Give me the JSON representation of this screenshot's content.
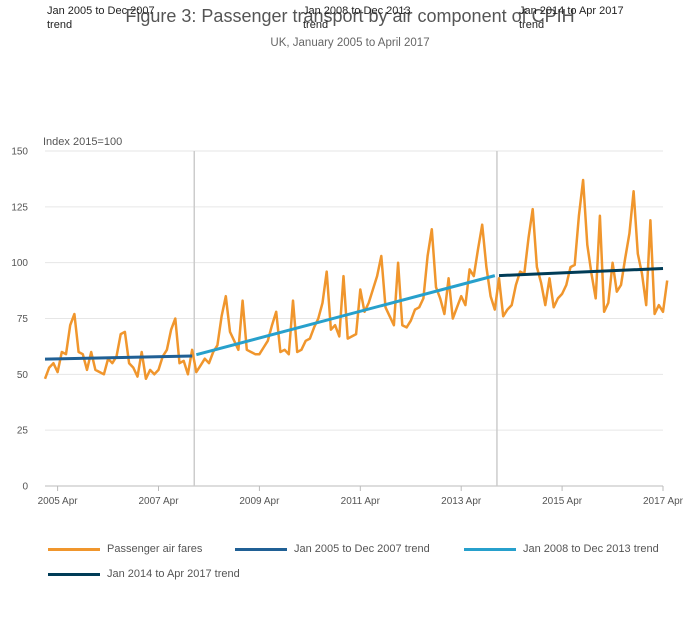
{
  "chart_data": {
    "type": "line",
    "title": "Figure 3: Passenger transport by air component of CPIH",
    "subtitle": "UK, January 2005 to April 2017",
    "ylabel": "Index 2015=100",
    "ylim": [
      0,
      150
    ],
    "yticks": [
      0,
      25,
      50,
      75,
      100,
      125,
      150
    ],
    "xlim": [
      "2005-01",
      "2017-04"
    ],
    "xticks": [
      {
        "x": "2005-04",
        "label": "2005 Apr"
      },
      {
        "x": "2007-04",
        "label": "2007 Apr"
      },
      {
        "x": "2009-04",
        "label": "2009 Apr"
      },
      {
        "x": "2011-04",
        "label": "2011 Apr"
      },
      {
        "x": "2013-04",
        "label": "2013 Apr"
      },
      {
        "x": "2015-04",
        "label": "2015 Apr"
      },
      {
        "x": "2017-04",
        "label": "2017 Apr"
      }
    ],
    "grid": true,
    "legend": "bottom",
    "period_labels": [
      {
        "text": "Jan 2005 to Dec 2007 trend",
        "x": "2005-01"
      },
      {
        "text": "Jan 2008 to Dec 2013 trend",
        "x": "2011-01"
      },
      {
        "text": "Jan 2014 to Apr 2017 trend",
        "x": "2015-05"
      }
    ],
    "dividers": [
      "2007-12",
      "2013-12"
    ],
    "start": "2005-01",
    "series": [
      {
        "name": "Passenger air fares",
        "color": "#f0962d",
        "values": [
          48,
          53,
          55,
          51,
          60,
          59,
          72,
          77,
          60,
          59,
          52,
          60,
          52,
          51,
          50,
          57,
          55,
          58,
          68,
          69,
          55,
          53,
          49,
          60,
          48,
          52,
          50,
          52,
          58,
          61,
          70,
          75,
          55,
          56,
          50,
          61,
          51,
          54,
          57,
          55,
          60,
          63,
          76,
          85,
          69,
          65,
          61,
          83,
          61,
          60,
          59,
          59,
          62,
          65,
          72,
          78,
          60,
          61,
          59,
          83,
          60,
          61,
          65,
          66,
          71,
          75,
          82,
          96,
          70,
          72,
          67,
          94,
          66,
          67,
          68,
          88,
          78,
          82,
          88,
          94,
          103,
          80,
          76,
          72,
          100,
          72,
          71,
          74,
          79,
          80,
          84,
          103,
          115,
          89,
          84,
          77,
          93,
          75,
          80,
          85,
          81,
          97,
          94,
          106,
          117,
          98,
          85,
          79,
          93,
          76,
          79,
          81,
          90,
          96,
          95,
          111,
          124,
          98,
          91,
          81,
          93,
          80,
          84,
          86,
          90,
          98,
          99,
          121,
          137,
          108,
          95,
          84,
          121,
          78,
          82,
          100,
          87,
          90,
          102,
          113,
          132,
          104,
          95,
          81,
          119,
          77,
          81,
          78,
          92
        ]
      },
      {
        "name": "Jan 2005 to Dec 2007 trend",
        "color": "#206095",
        "segment": [
          {
            "x": "2005-01",
            "y": 56.8
          },
          {
            "x": "2007-12",
            "y": 58.2
          }
        ]
      },
      {
        "name": "Jan 2008 to Dec 2013 trend",
        "color": "#27a0cc",
        "segment": [
          {
            "x": "2008-01",
            "y": 58.8
          },
          {
            "x": "2013-12",
            "y": 94.2
          }
        ]
      },
      {
        "name": "Jan 2014 to Apr 2017 trend",
        "color": "#003c57",
        "segment": [
          {
            "x": "2014-01",
            "y": 94.2
          },
          {
            "x": "2017-04",
            "y": 97.4
          }
        ]
      }
    ]
  }
}
